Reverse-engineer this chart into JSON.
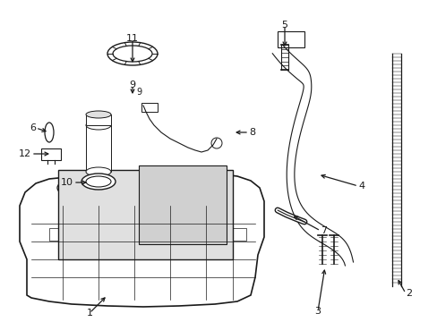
{
  "bg_color": "#ffffff",
  "line_color": "#1a1a1a",
  "fill_light": "#e0e0e0",
  "fill_mid": "#d0d0d0",
  "figsize": [
    4.89,
    3.6
  ],
  "dpi": 100,
  "xlim": [
    0,
    489
  ],
  "ylim": [
    0,
    360
  ]
}
